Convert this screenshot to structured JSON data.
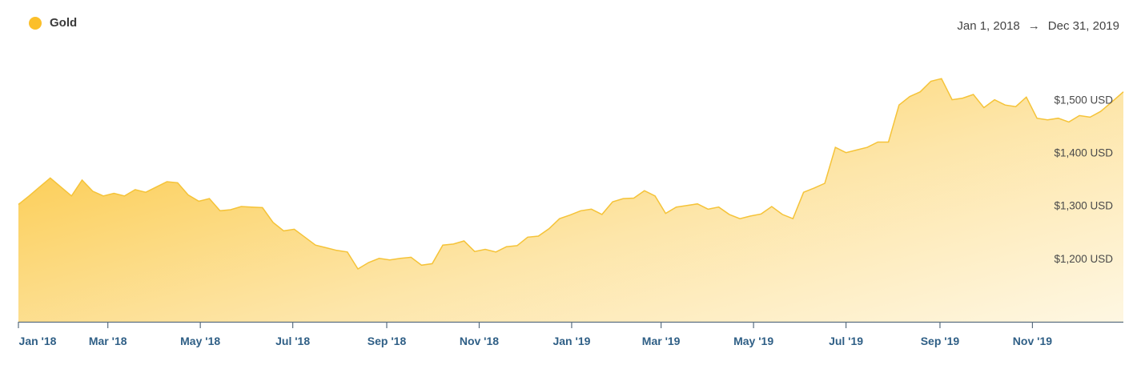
{
  "legend": {
    "label": "Gold",
    "color": "#fbbf2a"
  },
  "range": {
    "start": "Jan 1, 2018",
    "arrow": "→",
    "end": "Dec 31, 2019"
  },
  "chart_data": {
    "type": "area",
    "series": [
      {
        "name": "Gold",
        "color": "#f5c338",
        "points": [
          [
            "2018-01-01",
            1302
          ],
          [
            "2018-01-08",
            1318
          ],
          [
            "2018-01-15",
            1335
          ],
          [
            "2018-01-22",
            1352
          ],
          [
            "2018-01-29",
            1335
          ],
          [
            "2018-02-05",
            1318
          ],
          [
            "2018-02-12",
            1348
          ],
          [
            "2018-02-19",
            1327
          ],
          [
            "2018-02-26",
            1318
          ],
          [
            "2018-03-05",
            1323
          ],
          [
            "2018-03-12",
            1318
          ],
          [
            "2018-03-19",
            1330
          ],
          [
            "2018-03-26",
            1325
          ],
          [
            "2018-04-02",
            1335
          ],
          [
            "2018-04-09",
            1345
          ],
          [
            "2018-04-16",
            1343
          ],
          [
            "2018-04-23",
            1320
          ],
          [
            "2018-04-30",
            1308
          ],
          [
            "2018-05-07",
            1313
          ],
          [
            "2018-05-14",
            1290
          ],
          [
            "2018-05-21",
            1292
          ],
          [
            "2018-05-28",
            1298
          ],
          [
            "2018-06-04",
            1297
          ],
          [
            "2018-06-11",
            1296
          ],
          [
            "2018-06-18",
            1268
          ],
          [
            "2018-06-25",
            1252
          ],
          [
            "2018-07-02",
            1255
          ],
          [
            "2018-07-09",
            1240
          ],
          [
            "2018-07-16",
            1225
          ],
          [
            "2018-07-23",
            1220
          ],
          [
            "2018-07-30",
            1215
          ],
          [
            "2018-08-06",
            1212
          ],
          [
            "2018-08-13",
            1180
          ],
          [
            "2018-08-20",
            1192
          ],
          [
            "2018-08-27",
            1200
          ],
          [
            "2018-09-03",
            1197
          ],
          [
            "2018-09-10",
            1200
          ],
          [
            "2018-09-17",
            1202
          ],
          [
            "2018-09-24",
            1187
          ],
          [
            "2018-10-01",
            1190
          ],
          [
            "2018-10-08",
            1225
          ],
          [
            "2018-10-15",
            1227
          ],
          [
            "2018-10-22",
            1233
          ],
          [
            "2018-10-29",
            1213
          ],
          [
            "2018-11-05",
            1217
          ],
          [
            "2018-11-12",
            1212
          ],
          [
            "2018-11-19",
            1222
          ],
          [
            "2018-11-26",
            1224
          ],
          [
            "2018-12-03",
            1240
          ],
          [
            "2018-12-10",
            1242
          ],
          [
            "2018-12-17",
            1256
          ],
          [
            "2018-12-24",
            1275
          ],
          [
            "2018-12-31",
            1282
          ],
          [
            "2019-01-07",
            1290
          ],
          [
            "2019-01-14",
            1293
          ],
          [
            "2019-01-21",
            1283
          ],
          [
            "2019-01-28",
            1307
          ],
          [
            "2019-02-04",
            1313
          ],
          [
            "2019-02-11",
            1314
          ],
          [
            "2019-02-18",
            1328
          ],
          [
            "2019-02-25",
            1318
          ],
          [
            "2019-03-04",
            1285
          ],
          [
            "2019-03-11",
            1297
          ],
          [
            "2019-03-18",
            1300
          ],
          [
            "2019-03-25",
            1303
          ],
          [
            "2019-04-01",
            1293
          ],
          [
            "2019-04-08",
            1297
          ],
          [
            "2019-04-15",
            1283
          ],
          [
            "2019-04-22",
            1275
          ],
          [
            "2019-04-29",
            1280
          ],
          [
            "2019-05-06",
            1284
          ],
          [
            "2019-05-13",
            1298
          ],
          [
            "2019-05-20",
            1283
          ],
          [
            "2019-05-27",
            1275
          ],
          [
            "2019-06-03",
            1325
          ],
          [
            "2019-06-10",
            1333
          ],
          [
            "2019-06-17",
            1342
          ],
          [
            "2019-06-24",
            1410
          ],
          [
            "2019-07-01",
            1400
          ],
          [
            "2019-07-08",
            1405
          ],
          [
            "2019-07-15",
            1410
          ],
          [
            "2019-07-22",
            1420
          ],
          [
            "2019-07-29",
            1420
          ],
          [
            "2019-08-05",
            1490
          ],
          [
            "2019-08-12",
            1506
          ],
          [
            "2019-08-19",
            1515
          ],
          [
            "2019-08-26",
            1535
          ],
          [
            "2019-09-02",
            1540
          ],
          [
            "2019-09-09",
            1500
          ],
          [
            "2019-09-16",
            1503
          ],
          [
            "2019-09-23",
            1510
          ],
          [
            "2019-09-30",
            1485
          ],
          [
            "2019-10-07",
            1500
          ],
          [
            "2019-10-14",
            1490
          ],
          [
            "2019-10-21",
            1487
          ],
          [
            "2019-10-28",
            1505
          ],
          [
            "2019-11-04",
            1465
          ],
          [
            "2019-11-11",
            1462
          ],
          [
            "2019-11-18",
            1465
          ],
          [
            "2019-11-25",
            1458
          ],
          [
            "2019-12-02",
            1470
          ],
          [
            "2019-12-09",
            1467
          ],
          [
            "2019-12-16",
            1478
          ],
          [
            "2019-12-23",
            1495
          ],
          [
            "2019-12-31",
            1515
          ]
        ]
      }
    ],
    "xlim": [
      "2018-01-01",
      "2019-12-31"
    ],
    "ylim": [
      1080,
      1560
    ],
    "yticks": [
      {
        "value": 1200,
        "label": "$1,200 USD"
      },
      {
        "value": 1300,
        "label": "$1,300 USD"
      },
      {
        "value": 1400,
        "label": "$1,400 USD"
      },
      {
        "value": 1500,
        "label": "$1,500 USD"
      }
    ],
    "xticks": [
      {
        "date": "2018-01-01",
        "label": "Jan '18"
      },
      {
        "date": "2018-03-01",
        "label": "Mar '18"
      },
      {
        "date": "2018-05-01",
        "label": "May '18"
      },
      {
        "date": "2018-07-01",
        "label": "Jul '18"
      },
      {
        "date": "2018-09-01",
        "label": "Sep '18"
      },
      {
        "date": "2018-11-01",
        "label": "Nov '18"
      },
      {
        "date": "2019-01-01",
        "label": "Jan '19"
      },
      {
        "date": "2019-03-01",
        "label": "Mar '19"
      },
      {
        "date": "2019-05-01",
        "label": "May '19"
      },
      {
        "date": "2019-07-01",
        "label": "Jul '19"
      },
      {
        "date": "2019-09-01",
        "label": "Sep '19"
      },
      {
        "date": "2019-11-01",
        "label": "Nov '19"
      }
    ],
    "grid": false,
    "legend_position": "top-left"
  }
}
